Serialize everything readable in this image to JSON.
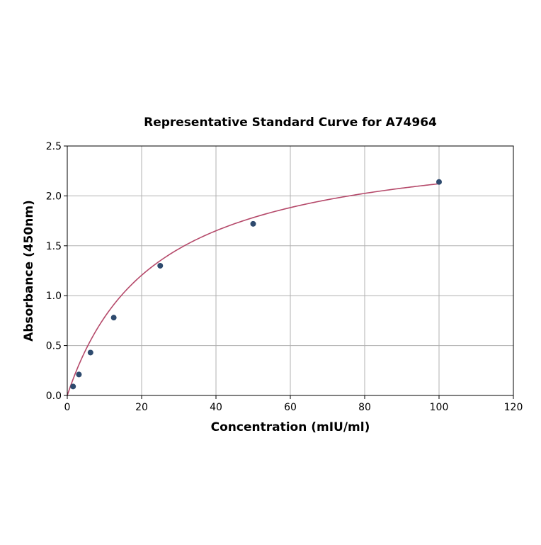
{
  "chart_data": {
    "type": "scatter",
    "title": "Representative Standard Curve for A74964",
    "xlabel": "Concentration (mIU/ml)",
    "ylabel": "Absorbance (450nm)",
    "xlim": [
      0,
      120
    ],
    "ylim": [
      0,
      2.5
    ],
    "x_ticks": [
      "0",
      "20",
      "40",
      "60",
      "80",
      "100",
      "120"
    ],
    "y_ticks": [
      "0.0",
      "0.5",
      "1.0",
      "1.5",
      "2.0",
      "2.5"
    ],
    "grid": true,
    "series": [
      {
        "type": "scatter",
        "x": [
          1.56,
          3.13,
          6.25,
          12.5,
          25,
          50,
          100
        ],
        "y": [
          0.09,
          0.21,
          0.43,
          0.78,
          1.3,
          1.72,
          2.14
        ]
      }
    ],
    "fit_curve": {
      "type": "line",
      "model": "hyperbolic",
      "a": 2.62,
      "b": 23.5
    },
    "colors": {
      "points": "#2e4a6e",
      "curve": "#b5496a",
      "grid": "#b0b0b0"
    }
  }
}
